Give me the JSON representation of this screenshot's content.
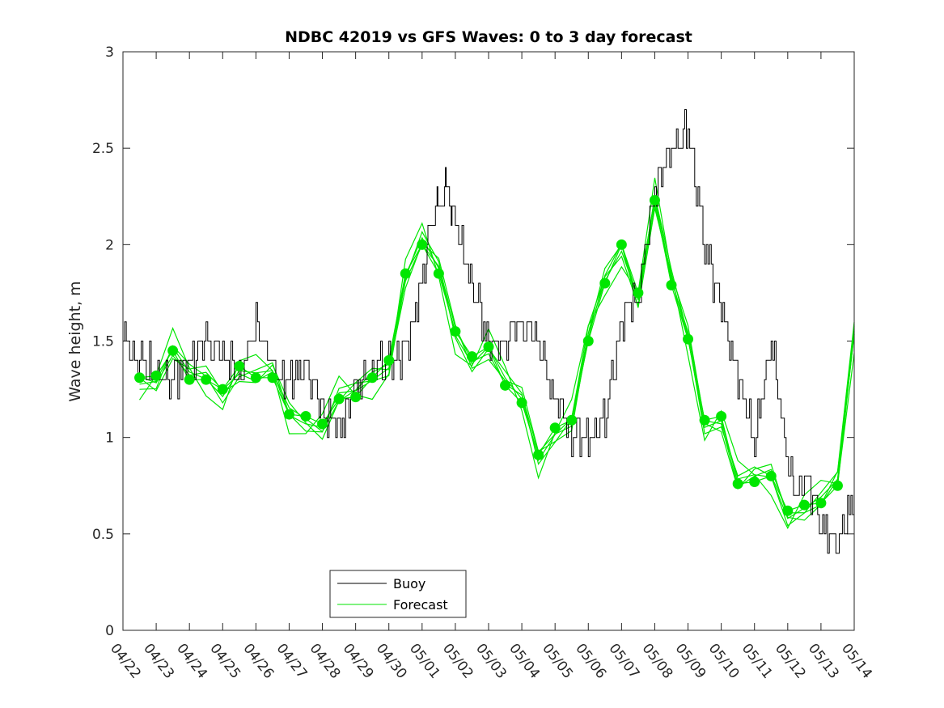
{
  "chart_data": {
    "type": "line",
    "title": "NDBC 42019 vs GFS Waves: 0 to 3 day forecast",
    "xlabel": "",
    "ylabel": "Wave height, m",
    "ylim": [
      0,
      3
    ],
    "xlim_day": [
      0,
      22
    ],
    "yticks": [
      "0",
      "0.5",
      "1",
      "1.5",
      "2",
      "2.5",
      "3"
    ],
    "xticks": [
      "04/22",
      "04/23",
      "04/24",
      "04/25",
      "04/26",
      "04/27",
      "04/28",
      "04/29",
      "04/30",
      "05/01",
      "05/02",
      "05/03",
      "05/04",
      "05/05",
      "05/06",
      "05/07",
      "05/08",
      "05/09",
      "05/10",
      "05/11",
      "05/12",
      "05/13",
      "05/14"
    ],
    "legend": {
      "position": "bottom-center",
      "items": [
        "Buoy",
        "Forecast"
      ]
    },
    "colors": {
      "buoy": "#000000",
      "forecast": "#00e600",
      "axes": "#262626"
    },
    "grid": false,
    "series": [
      {
        "name": "Buoy",
        "x_day": [
          0,
          0.5,
          1,
          1.5,
          2,
          2.5,
          3,
          3.5,
          4,
          4.5,
          5,
          5.5,
          6,
          6.5,
          7,
          7.5,
          8,
          8.5,
          9,
          9.25,
          9.5,
          9.75,
          10,
          10.5,
          11,
          11.5,
          12,
          12.5,
          13,
          13.5,
          14,
          14.5,
          15,
          15.5,
          16,
          16.5,
          17,
          17.5,
          18,
          18.5,
          19,
          19.5,
          20,
          20.25,
          20.5,
          21,
          21.5,
          22
        ],
        "values": [
          1.5,
          1.38,
          1.35,
          1.3,
          1.4,
          1.5,
          1.45,
          1.3,
          1.6,
          1.35,
          1.3,
          1.35,
          1.15,
          1.05,
          1.25,
          1.35,
          1.4,
          1.45,
          1.8,
          2.1,
          2.2,
          2.3,
          2.1,
          1.8,
          1.5,
          1.5,
          1.6,
          1.5,
          1.2,
          1.0,
          1.0,
          1.1,
          1.6,
          1.75,
          2.3,
          2.5,
          2.6,
          2.0,
          1.65,
          1.3,
          1.0,
          1.5,
          0.85,
          0.7,
          0.8,
          0.55,
          0.45,
          0.7
        ]
      },
      {
        "name": "Forecast",
        "x_day": [
          0.5,
          1,
          1.5,
          2,
          2.5,
          3,
          3.5,
          4,
          4.5,
          5,
          5.5,
          6,
          6.5,
          7,
          7.5,
          8,
          8.5,
          9,
          9.5,
          10,
          10.5,
          11,
          11.5,
          12,
          12.5,
          13,
          13.5,
          14,
          14.5,
          15,
          15.5,
          16,
          16.5,
          17,
          17.5,
          18,
          18.5,
          19,
          19.5,
          20,
          20.5,
          21,
          21.5,
          22
        ],
        "values": [
          1.31,
          1.32,
          1.45,
          1.3,
          1.3,
          1.25,
          1.37,
          1.31,
          1.31,
          1.12,
          1.11,
          1.07,
          1.2,
          1.21,
          1.31,
          1.4,
          1.85,
          2.0,
          1.85,
          1.55,
          1.42,
          1.47,
          1.27,
          1.18,
          0.91,
          1.05,
          1.09,
          1.5,
          1.8,
          2.0,
          1.75,
          2.23,
          1.79,
          1.51,
          1.09,
          1.11,
          0.76,
          0.77,
          0.8,
          0.62,
          0.65,
          0.66,
          0.75,
          1.55
        ]
      }
    ]
  }
}
